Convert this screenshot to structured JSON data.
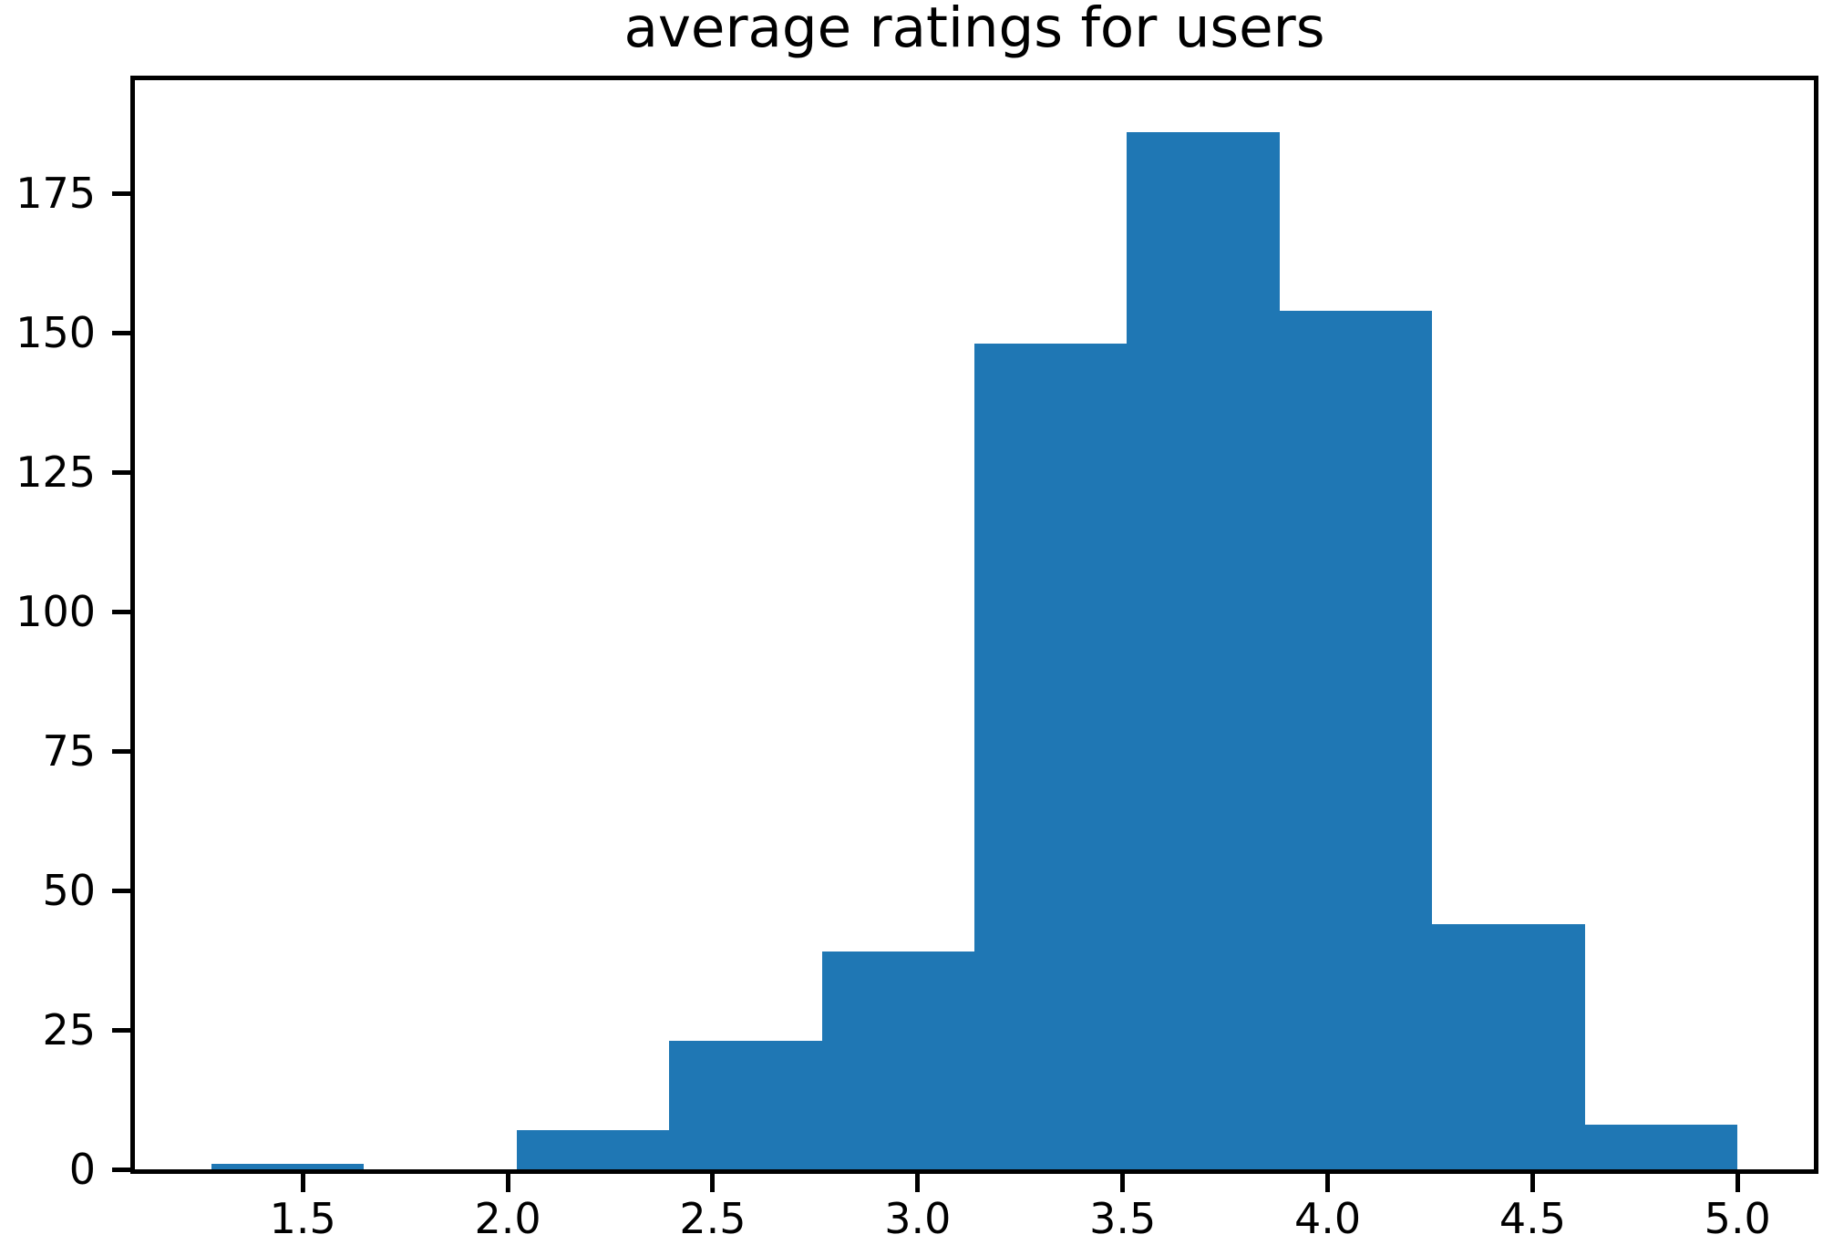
{
  "chart_data": {
    "type": "bar",
    "subtype": "histogram",
    "title": "average ratings for users",
    "xlabel": "",
    "ylabel": "",
    "bin_edges": [
      1.2765,
      1.6489,
      2.0212,
      2.3936,
      2.7659,
      3.1383,
      3.5106,
      3.883,
      4.2553,
      4.6277,
      5.0
    ],
    "counts": [
      1,
      0,
      7,
      23,
      39,
      148,
      186,
      154,
      44,
      8
    ],
    "xlim": [
      1.0903,
      5.1862
    ],
    "ylim": [
      0,
      195.3
    ],
    "x_tick_values": [
      1.5,
      2.0,
      2.5,
      3.0,
      3.5,
      4.0,
      4.5,
      5.0
    ],
    "x_tick_labels": [
      "1.5",
      "2.0",
      "2.5",
      "3.0",
      "3.5",
      "4.0",
      "4.5",
      "5.0"
    ],
    "y_tick_values": [
      0,
      25,
      50,
      75,
      100,
      125,
      150,
      175
    ],
    "y_tick_labels": [
      "0",
      "25",
      "50",
      "75",
      "100",
      "125",
      "150",
      "175"
    ],
    "grid": false,
    "legend": "none",
    "bar_color": "#1f77b4",
    "axis_color": "#000000",
    "background_color": "#ffffff"
  }
}
